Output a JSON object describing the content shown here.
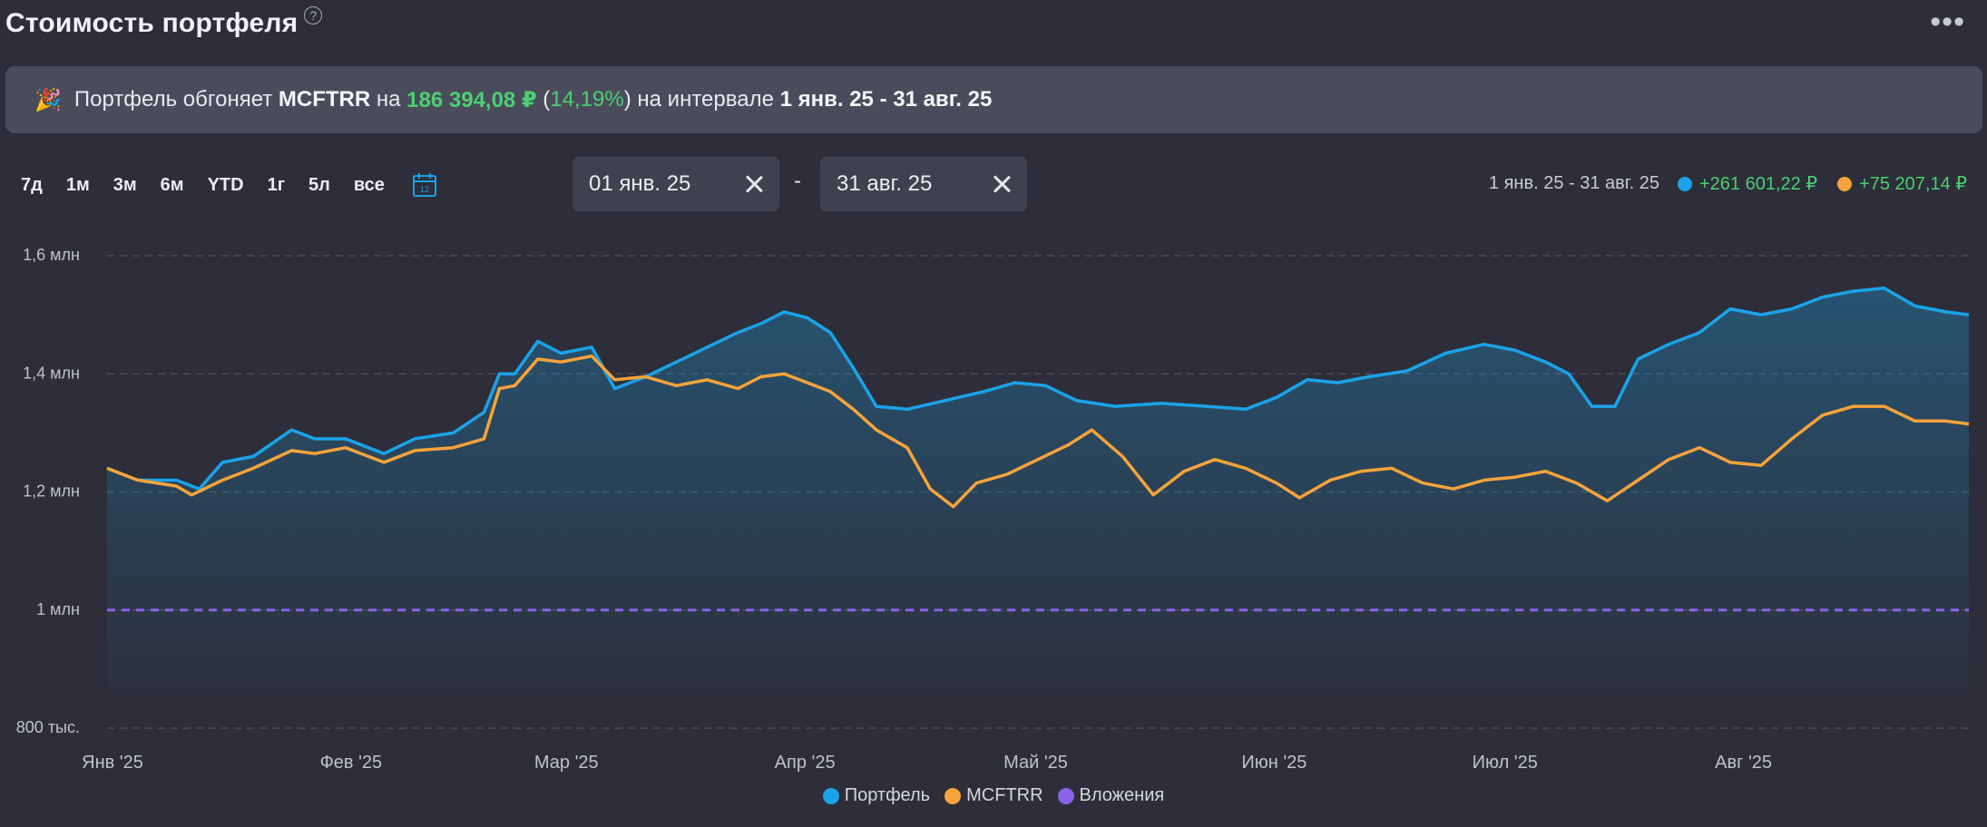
{
  "header": {
    "title": "Стоимость портфеля",
    "help_icon": "?",
    "more_icon": "•••"
  },
  "banner": {
    "emoji": "🎉",
    "text1": "Портфель обгоняет ",
    "benchmark": "MCFTRR",
    "text2": " на ",
    "amount": "186 394,08 ₽",
    "paren_open": " (",
    "pct": "14,19%",
    "paren_close": ")",
    "text3": " на интервале ",
    "interval": "1 янв. 25 - 31 авг. 25"
  },
  "periods": [
    "7д",
    "1м",
    "3м",
    "6м",
    "YTD",
    "1г",
    "5л",
    "все"
  ],
  "date_from": "01 янв. 25",
  "date_sep": "-",
  "date_to": "31 авг. 25",
  "summary": {
    "range": "1 янв. 25 - 31 авг. 25",
    "portfolio_change": "+261 601,22 ₽",
    "benchmark_change": "+75 207,14 ₽"
  },
  "colors": {
    "portfolio": "#1aa3e8",
    "benchmark": "#f5a33b",
    "invest": "#8a63e8",
    "positive": "#4ccf72"
  },
  "chart_data": {
    "type": "line",
    "y_ticks": [
      {
        "value": 800000,
        "label": "800 тыс."
      },
      {
        "value": 1000000,
        "label": "1 млн"
      },
      {
        "value": 1200000,
        "label": "1,2 млн"
      },
      {
        "value": 1400000,
        "label": "1,4 млн"
      },
      {
        "value": 1600000,
        "label": "1,6 млн"
      }
    ],
    "ylim": [
      800000,
      1600000
    ],
    "xlim": [
      "2025-01-01",
      "2025-08-31"
    ],
    "x_ticks": [
      {
        "date": "2025-01-01",
        "label": "Янв '25"
      },
      {
        "date": "2025-02-01",
        "label": "Фев '25"
      },
      {
        "date": "2025-03-01",
        "label": "Мар '25"
      },
      {
        "date": "2025-04-01",
        "label": "Апр '25"
      },
      {
        "date": "2025-05-01",
        "label": "Май '25"
      },
      {
        "date": "2025-06-01",
        "label": "Июн '25"
      },
      {
        "date": "2025-07-01",
        "label": "Июл '25"
      },
      {
        "date": "2025-08-01",
        "label": "Авг '25"
      }
    ],
    "grid": "horizontal-dashed",
    "series": [
      {
        "name": "Портфель",
        "color": "#1aa3e8",
        "area": true,
        "points": [
          [
            "2025-01-01",
            1240000
          ],
          [
            "2025-01-05",
            1220000
          ],
          [
            "2025-01-10",
            1220000
          ],
          [
            "2025-01-13",
            1205000
          ],
          [
            "2025-01-16",
            1250000
          ],
          [
            "2025-01-20",
            1260000
          ],
          [
            "2025-01-25",
            1305000
          ],
          [
            "2025-01-28",
            1290000
          ],
          [
            "2025-02-01",
            1290000
          ],
          [
            "2025-02-06",
            1265000
          ],
          [
            "2025-02-10",
            1290000
          ],
          [
            "2025-02-15",
            1300000
          ],
          [
            "2025-02-19",
            1335000
          ],
          [
            "2025-02-21",
            1400000
          ],
          [
            "2025-02-23",
            1400000
          ],
          [
            "2025-02-26",
            1455000
          ],
          [
            "2025-03-01",
            1435000
          ],
          [
            "2025-03-05",
            1445000
          ],
          [
            "2025-03-08",
            1375000
          ],
          [
            "2025-03-12",
            1395000
          ],
          [
            "2025-03-16",
            1420000
          ],
          [
            "2025-03-20",
            1445000
          ],
          [
            "2025-03-24",
            1470000
          ],
          [
            "2025-03-27",
            1485000
          ],
          [
            "2025-03-30",
            1505000
          ],
          [
            "2025-04-02",
            1495000
          ],
          [
            "2025-04-05",
            1470000
          ],
          [
            "2025-04-08",
            1410000
          ],
          [
            "2025-04-11",
            1345000
          ],
          [
            "2025-04-15",
            1340000
          ],
          [
            "2025-04-20",
            1355000
          ],
          [
            "2025-04-25",
            1370000
          ],
          [
            "2025-04-29",
            1385000
          ],
          [
            "2025-05-03",
            1380000
          ],
          [
            "2025-05-07",
            1355000
          ],
          [
            "2025-05-12",
            1345000
          ],
          [
            "2025-05-18",
            1350000
          ],
          [
            "2025-05-24",
            1345000
          ],
          [
            "2025-05-29",
            1340000
          ],
          [
            "2025-06-02",
            1360000
          ],
          [
            "2025-06-06",
            1390000
          ],
          [
            "2025-06-10",
            1385000
          ],
          [
            "2025-06-14",
            1395000
          ],
          [
            "2025-06-19",
            1405000
          ],
          [
            "2025-06-24",
            1435000
          ],
          [
            "2025-06-29",
            1450000
          ],
          [
            "2025-07-03",
            1440000
          ],
          [
            "2025-07-07",
            1420000
          ],
          [
            "2025-07-10",
            1400000
          ],
          [
            "2025-07-13",
            1345000
          ],
          [
            "2025-07-16",
            1345000
          ],
          [
            "2025-07-19",
            1425000
          ],
          [
            "2025-07-23",
            1450000
          ],
          [
            "2025-07-27",
            1470000
          ],
          [
            "2025-07-31",
            1510000
          ],
          [
            "2025-08-04",
            1500000
          ],
          [
            "2025-08-08",
            1510000
          ],
          [
            "2025-08-12",
            1530000
          ],
          [
            "2025-08-16",
            1540000
          ],
          [
            "2025-08-20",
            1545000
          ],
          [
            "2025-08-24",
            1515000
          ],
          [
            "2025-08-28",
            1505000
          ],
          [
            "2025-08-31",
            1500000
          ]
        ]
      },
      {
        "name": "MCFTRR",
        "color": "#f5a33b",
        "area": false,
        "points": [
          [
            "2025-01-01",
            1240000
          ],
          [
            "2025-01-05",
            1220000
          ],
          [
            "2025-01-10",
            1210000
          ],
          [
            "2025-01-12",
            1195000
          ],
          [
            "2025-01-16",
            1220000
          ],
          [
            "2025-01-20",
            1240000
          ],
          [
            "2025-01-25",
            1270000
          ],
          [
            "2025-01-28",
            1265000
          ],
          [
            "2025-02-01",
            1275000
          ],
          [
            "2025-02-06",
            1250000
          ],
          [
            "2025-02-10",
            1270000
          ],
          [
            "2025-02-15",
            1275000
          ],
          [
            "2025-02-19",
            1290000
          ],
          [
            "2025-02-21",
            1375000
          ],
          [
            "2025-02-23",
            1380000
          ],
          [
            "2025-02-26",
            1425000
          ],
          [
            "2025-03-01",
            1420000
          ],
          [
            "2025-03-05",
            1430000
          ],
          [
            "2025-03-08",
            1390000
          ],
          [
            "2025-03-12",
            1395000
          ],
          [
            "2025-03-16",
            1380000
          ],
          [
            "2025-03-20",
            1390000
          ],
          [
            "2025-03-24",
            1375000
          ],
          [
            "2025-03-27",
            1395000
          ],
          [
            "2025-03-30",
            1400000
          ],
          [
            "2025-04-02",
            1385000
          ],
          [
            "2025-04-05",
            1370000
          ],
          [
            "2025-04-08",
            1340000
          ],
          [
            "2025-04-11",
            1305000
          ],
          [
            "2025-04-15",
            1275000
          ],
          [
            "2025-04-18",
            1205000
          ],
          [
            "2025-04-21",
            1175000
          ],
          [
            "2025-04-24",
            1215000
          ],
          [
            "2025-04-28",
            1230000
          ],
          [
            "2025-05-02",
            1255000
          ],
          [
            "2025-05-06",
            1280000
          ],
          [
            "2025-05-09",
            1305000
          ],
          [
            "2025-05-13",
            1260000
          ],
          [
            "2025-05-17",
            1195000
          ],
          [
            "2025-05-21",
            1235000
          ],
          [
            "2025-05-25",
            1255000
          ],
          [
            "2025-05-29",
            1240000
          ],
          [
            "2025-06-02",
            1215000
          ],
          [
            "2025-06-05",
            1190000
          ],
          [
            "2025-06-09",
            1220000
          ],
          [
            "2025-06-13",
            1235000
          ],
          [
            "2025-06-17",
            1240000
          ],
          [
            "2025-06-21",
            1215000
          ],
          [
            "2025-06-25",
            1205000
          ],
          [
            "2025-06-29",
            1220000
          ],
          [
            "2025-07-03",
            1225000
          ],
          [
            "2025-07-07",
            1235000
          ],
          [
            "2025-07-11",
            1215000
          ],
          [
            "2025-07-15",
            1185000
          ],
          [
            "2025-07-19",
            1220000
          ],
          [
            "2025-07-23",
            1255000
          ],
          [
            "2025-07-27",
            1275000
          ],
          [
            "2025-07-31",
            1250000
          ],
          [
            "2025-08-04",
            1245000
          ],
          [
            "2025-08-08",
            1290000
          ],
          [
            "2025-08-12",
            1330000
          ],
          [
            "2025-08-16",
            1345000
          ],
          [
            "2025-08-20",
            1345000
          ],
          [
            "2025-08-24",
            1320000
          ],
          [
            "2025-08-28",
            1320000
          ],
          [
            "2025-08-31",
            1315000
          ]
        ]
      },
      {
        "name": "Вложения",
        "color": "#8a63e8",
        "area": false,
        "dashed": true,
        "points": [
          [
            "2025-01-01",
            1000000
          ],
          [
            "2025-08-31",
            1000000
          ]
        ]
      }
    ]
  }
}
